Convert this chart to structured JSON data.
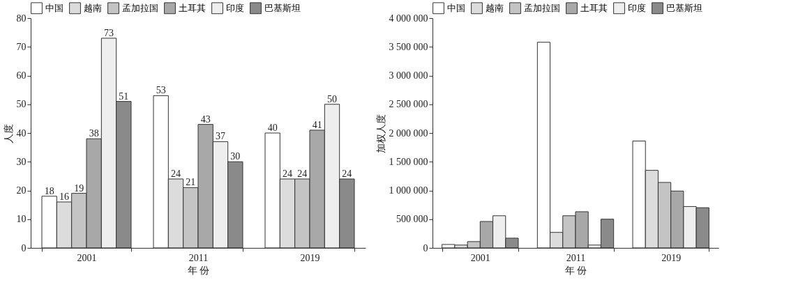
{
  "chart_data": [
    {
      "type": "bar",
      "categories": [
        "2001",
        "2011",
        "2019"
      ],
      "xlabel": "年 份",
      "ylabel": "人度",
      "ylim": [
        0,
        80
      ],
      "yticks": [
        0,
        10,
        20,
        30,
        40,
        50,
        60,
        70,
        80
      ],
      "data_labels": true,
      "legend": "top",
      "series": [
        {
          "name": "中国",
          "color": "#ffffff",
          "values": [
            18,
            53,
            40
          ]
        },
        {
          "name": "越南",
          "color": "#dcdcdc",
          "values": [
            16,
            24,
            24
          ]
        },
        {
          "name": "孟加拉国",
          "color": "#c4c4c4",
          "values": [
            19,
            21,
            24
          ]
        },
        {
          "name": "土耳其",
          "color": "#a8a8a8",
          "values": [
            38,
            43,
            41
          ]
        },
        {
          "name": "印度",
          "color": "#eeeeee",
          "values": [
            73,
            37,
            50
          ]
        },
        {
          "name": "巴基斯坦",
          "color": "#8a8a8a",
          "values": [
            51,
            30,
            24
          ]
        }
      ]
    },
    {
      "type": "bar",
      "categories": [
        "2001",
        "2011",
        "2019"
      ],
      "xlabel": "年 份",
      "ylabel": "加权人度",
      "ylim": [
        0,
        4000000
      ],
      "yticks": [
        0,
        {
          "value": 500000,
          "label": "500 000"
        },
        {
          "value": 1000000,
          "label": "1 000 000"
        },
        {
          "value": 1500000,
          "label": "1 500 000"
        },
        {
          "value": 2000000,
          "label": "2 000 000"
        },
        {
          "value": 2500000,
          "label": "2 500 000"
        },
        {
          "value": 3000000,
          "label": "3 000 000"
        },
        {
          "value": 3500000,
          "label": "3 500 000"
        },
        {
          "value": 4000000,
          "label": "4 000 000"
        }
      ],
      "legend": "top",
      "series": [
        {
          "name": "中国",
          "color": "#ffffff",
          "values": [
            60000,
            3580000,
            1860000
          ]
        },
        {
          "name": "越南",
          "color": "#dcdcdc",
          "values": [
            50000,
            270000,
            1350000
          ]
        },
        {
          "name": "孟加拉国",
          "color": "#c4c4c4",
          "values": [
            110000,
            560000,
            1140000
          ]
        },
        {
          "name": "土耳其",
          "color": "#a8a8a8",
          "values": [
            460000,
            630000,
            990000
          ]
        },
        {
          "name": "印度",
          "color": "#eeeeee",
          "values": [
            560000,
            50000,
            720000
          ]
        },
        {
          "name": "巴基斯坦",
          "color": "#8a8a8a",
          "values": [
            170000,
            500000,
            700000
          ]
        }
      ]
    }
  ]
}
